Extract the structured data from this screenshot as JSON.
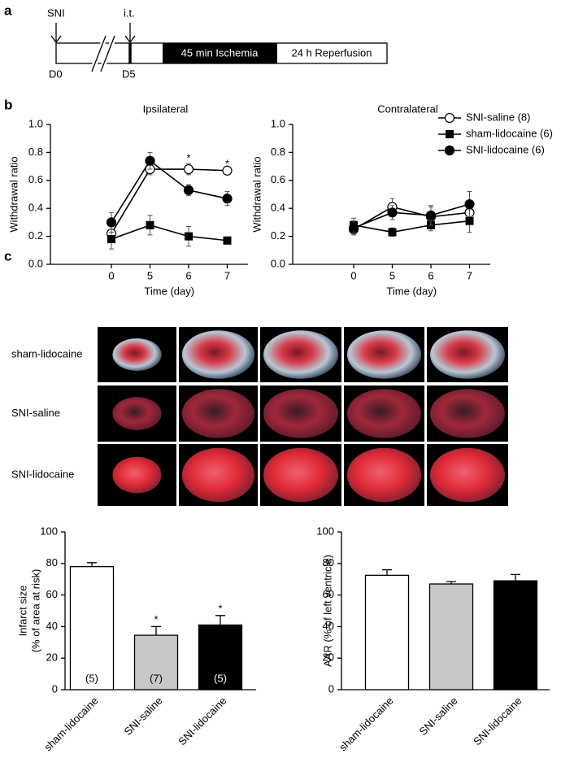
{
  "panel_labels": [
    "a",
    "b",
    "c"
  ],
  "timeline": {
    "events": [
      {
        "label": "SNI",
        "day": "D0"
      },
      {
        "label": "i.t.",
        "day": "D5"
      }
    ],
    "phases": [
      "45 min Ischemia",
      "24 h Reperfusion"
    ]
  },
  "images": {
    "row_labels": [
      "sham-lidocaine",
      "SNI-saline",
      "SNI-lidocaine"
    ]
  },
  "chart_data": [
    {
      "type": "line",
      "title": "Ipsilateral",
      "x_label": "Time (day)",
      "y_label": "Withdrawal ratio",
      "categories": [
        "0",
        "5",
        "6",
        "7"
      ],
      "ylim": [
        0,
        1
      ],
      "yticks": [
        {
          "value": 0,
          "label": "0.0"
        },
        0.2,
        0.4,
        0.6,
        0.8,
        {
          "value": 1,
          "label": "1.0"
        }
      ],
      "series": [
        {
          "name": "SNI-saline (8)",
          "color": "#000000",
          "marker": "open-circle",
          "values": [
            0.22,
            0.68,
            0.68,
            0.67
          ],
          "errors": [
            0.03,
            0.04,
            0.04,
            0.01
          ]
        },
        {
          "name": "sham-lidocaine (6)",
          "color": "#000000",
          "marker": "square",
          "values": [
            0.18,
            0.28,
            0.2,
            0.17
          ],
          "errors": [
            0.07,
            0.07,
            0.07,
            0.02
          ]
        },
        {
          "name": "SNI-lidocaine (6)",
          "color": "#000000",
          "marker": "circle",
          "values": [
            0.3,
            0.74,
            0.53,
            0.47
          ],
          "errors": [
            0.07,
            0.06,
            0.04,
            0.05
          ]
        }
      ],
      "significance": [
        null,
        null,
        "*",
        "*"
      ]
    },
    {
      "type": "line",
      "title": "Contralateral",
      "x_label": "Time (day)",
      "y_label": "Withdrawal ratio",
      "categories": [
        "0",
        "5",
        "6",
        "7"
      ],
      "legend": "top-right",
      "ylim": [
        0,
        1
      ],
      "yticks": [
        {
          "value": 0,
          "label": "0.0"
        },
        0.2,
        0.4,
        0.6,
        0.8,
        {
          "value": 1,
          "label": "1.0"
        }
      ],
      "series": [
        {
          "name": "SNI-saline (8)",
          "color": "#000000",
          "marker": "open-circle",
          "values": [
            0.25,
            0.41,
            0.34,
            0.37
          ],
          "errors": [
            0.04,
            0.06,
            0.07,
            0.06
          ]
        },
        {
          "name": "sham-lidocaine (6)",
          "color": "#000000",
          "marker": "square",
          "values": [
            0.28,
            0.23,
            0.28,
            0.31
          ],
          "errors": [
            0.05,
            0.03,
            0.04,
            0.08
          ]
        },
        {
          "name": "SNI-lidocaine (6)",
          "color": "#000000",
          "marker": "circle",
          "values": [
            0.26,
            0.37,
            0.35,
            0.43
          ],
          "errors": [
            0.05,
            0.05,
            0.07,
            0.09
          ]
        }
      ]
    },
    {
      "type": "bar",
      "y_label": [
        "Infarct size",
        "(% of area at risk)"
      ],
      "categories": [
        "sham-lidocaine",
        "SNI-saline",
        "SNI-lidocaine"
      ],
      "values": [
        78,
        34.5,
        41
      ],
      "errors": [
        2.5,
        5.5,
        6
      ],
      "colors": [
        "#ffffff",
        "#c8c8c8",
        "#000000"
      ],
      "n_labels": [
        "(5)",
        "(7)",
        "(5)"
      ],
      "significance": [
        null,
        "*",
        "*"
      ],
      "ylim": [
        0,
        100
      ],
      "yticks": [
        0,
        20,
        40,
        60,
        80,
        100
      ]
    },
    {
      "type": "bar",
      "y_label": "AAR (% of left ventricle)",
      "categories": [
        "sham-lidocaine",
        "SNI-saline",
        "SNI-lidocaine"
      ],
      "values": [
        72.5,
        67,
        69
      ],
      "errors": [
        3.5,
        1.5,
        4
      ],
      "colors": [
        "#ffffff",
        "#c8c8c8",
        "#000000"
      ],
      "ylim": [
        0,
        100
      ],
      "yticks": [
        0,
        20,
        40,
        60,
        80,
        100
      ]
    }
  ]
}
